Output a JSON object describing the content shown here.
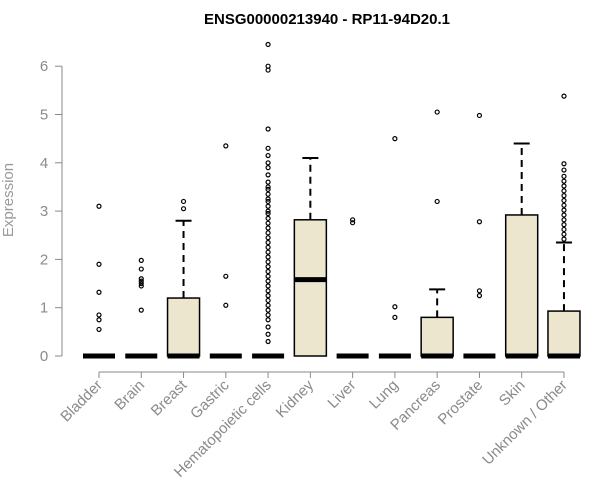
{
  "chart_data": {
    "type": "boxplot",
    "title": "ENSG00000213940 - RP11-94D20.1",
    "xlabel": "",
    "ylabel": "Expression",
    "ylim": [
      0,
      6.5
    ],
    "yticks": [
      0,
      1,
      2,
      3,
      4,
      5,
      6
    ],
    "box_fill": "#ede6cf",
    "box_stroke": "#000000",
    "axis_color": "#8a8a8a",
    "categories": [
      "Bladder",
      "Brain",
      "Breast",
      "Gastric",
      "Hematopoietic cells",
      "Kidney",
      "Liver",
      "Lung",
      "Pancreas",
      "Prostate",
      "Skin",
      "Unknown / Other"
    ],
    "boxes": [
      {
        "category": "Bladder",
        "q1": 0,
        "median": 0,
        "q3": 0,
        "whisker_low": 0,
        "whisker_high": 0,
        "outliers": [
          3.1,
          1.9,
          1.32,
          0.85,
          0.75,
          0.55
        ]
      },
      {
        "category": "Brain",
        "q1": 0,
        "median": 0,
        "q3": 0,
        "whisker_low": 0,
        "whisker_high": 0,
        "outliers": [
          1.98,
          1.8,
          1.6,
          1.55,
          1.5,
          1.45,
          0.95
        ]
      },
      {
        "category": "Breast",
        "q1": 0,
        "median": 0,
        "q3": 1.2,
        "whisker_low": 0,
        "whisker_high": 2.8,
        "outliers": [
          3.2,
          3.05
        ]
      },
      {
        "category": "Gastric",
        "q1": 0,
        "median": 0,
        "q3": 0,
        "whisker_low": 0,
        "whisker_high": 0,
        "outliers": [
          4.35,
          1.65,
          1.05
        ]
      },
      {
        "category": "Hematopoietic cells",
        "q1": 0,
        "median": 0,
        "q3": 0,
        "whisker_low": 0,
        "whisker_high": 0,
        "outliers": [
          6.45,
          6.0,
          5.92,
          4.7,
          4.3,
          4.15,
          4.0,
          3.9,
          3.75,
          3.6,
          3.5,
          3.45,
          3.35,
          3.25,
          3.2,
          3.1,
          3.0,
          2.95,
          2.85,
          2.75,
          2.65,
          2.55,
          2.45,
          2.35,
          2.25,
          2.15,
          2.05,
          1.95,
          1.85,
          1.75,
          1.65,
          1.55,
          1.45,
          1.35,
          1.25,
          1.15,
          1.05,
          0.95,
          0.85,
          0.75,
          0.6,
          0.45,
          0.3
        ]
      },
      {
        "category": "Kidney",
        "q1": 0,
        "median": 1.58,
        "q3": 2.82,
        "whisker_low": 0,
        "whisker_high": 4.1,
        "outliers": []
      },
      {
        "category": "Liver",
        "q1": 0,
        "median": 0,
        "q3": 0,
        "whisker_low": 0,
        "whisker_high": 0,
        "outliers": [
          2.82,
          2.76
        ]
      },
      {
        "category": "Lung",
        "q1": 0,
        "median": 0,
        "q3": 0,
        "whisker_low": 0,
        "whisker_high": 0,
        "outliers": [
          4.5,
          1.02,
          0.8
        ]
      },
      {
        "category": "Pancreas",
        "q1": 0,
        "median": 0,
        "q3": 0.8,
        "whisker_low": 0,
        "whisker_high": 1.38,
        "outliers": [
          5.05,
          3.2
        ]
      },
      {
        "category": "Prostate",
        "q1": 0,
        "median": 0,
        "q3": 0,
        "whisker_low": 0,
        "whisker_high": 0,
        "outliers": [
          4.98,
          2.78,
          1.35,
          1.25
        ]
      },
      {
        "category": "Skin",
        "q1": 0,
        "median": 0,
        "q3": 2.92,
        "whisker_low": 0,
        "whisker_high": 4.4,
        "outliers": []
      },
      {
        "category": "Unknown / Other",
        "q1": 0,
        "median": 0,
        "q3": 0.93,
        "whisker_low": 0,
        "whisker_high": 2.35,
        "outliers": [
          5.38,
          3.98,
          3.85,
          3.72,
          3.62,
          3.52,
          3.42,
          3.32,
          3.22,
          3.12,
          3.02,
          2.92,
          2.82,
          2.72,
          2.62,
          2.52,
          2.42
        ]
      }
    ]
  }
}
